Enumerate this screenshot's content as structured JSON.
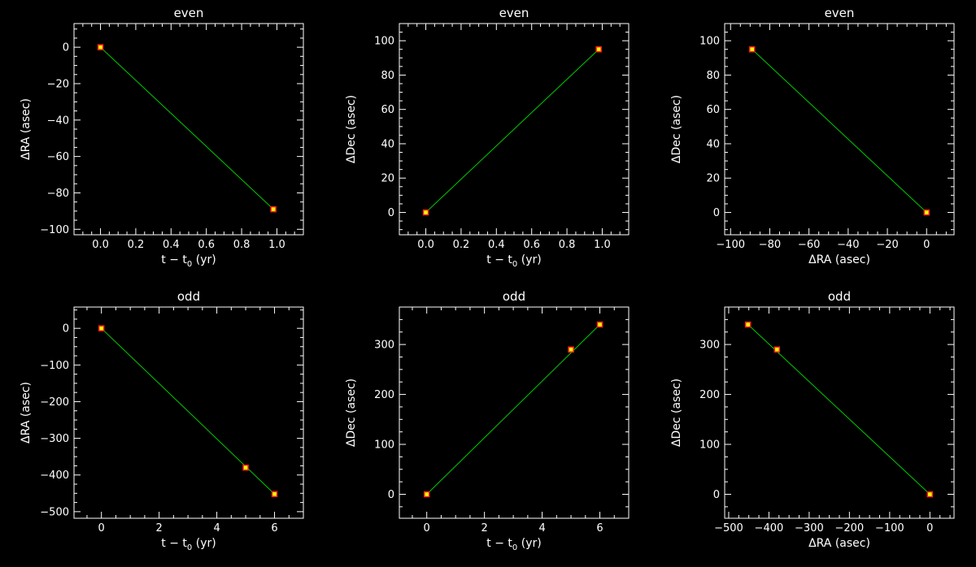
{
  "colors": {
    "background": "#000000",
    "axes": "#ffffff",
    "fit_line": "#00cc00",
    "marker_fill": "#ffff00",
    "marker_edge": "#ff2020"
  },
  "chart_data": [
    {
      "type": "scatter",
      "title": "even",
      "xlabel": {
        "main": "t − t",
        "sub": "0",
        "tail": " (yr)"
      },
      "ylabel": {
        "main": "ΔRA (asec)"
      },
      "xlim": [
        -0.15,
        1.15
      ],
      "ylim": [
        -103,
        13
      ],
      "xticks": [
        0.0,
        0.2,
        0.4,
        0.6,
        0.8,
        1.0
      ],
      "xtick_labels": [
        "0.0",
        "0.2",
        "0.4",
        "0.6",
        "0.8",
        "1.0"
      ],
      "yticks": [
        -100,
        -80,
        -60,
        -40,
        -20,
        0
      ],
      "ytick_labels": [
        "−100",
        "−80",
        "−60",
        "−40",
        "−20",
        "0"
      ],
      "xminor": 4,
      "yminor": 4,
      "points": {
        "x": [
          0.0,
          0.98
        ],
        "y": [
          0,
          -89
        ]
      },
      "fit_line": {
        "x": [
          0.0,
          0.98
        ],
        "y": [
          0,
          -89
        ]
      }
    },
    {
      "type": "scatter",
      "title": "even",
      "xlabel": {
        "main": "t − t",
        "sub": "0",
        "tail": " (yr)"
      },
      "ylabel": {
        "main": "ΔDec (asec)"
      },
      "xlim": [
        -0.15,
        1.15
      ],
      "ylim": [
        -13,
        110
      ],
      "xticks": [
        0.0,
        0.2,
        0.4,
        0.6,
        0.8,
        1.0
      ],
      "xtick_labels": [
        "0.0",
        "0.2",
        "0.4",
        "0.6",
        "0.8",
        "1.0"
      ],
      "yticks": [
        0,
        20,
        40,
        60,
        80,
        100
      ],
      "ytick_labels": [
        "0",
        "20",
        "40",
        "60",
        "80",
        "100"
      ],
      "xminor": 4,
      "yminor": 4,
      "points": {
        "x": [
          0.0,
          0.98
        ],
        "y": [
          0,
          95
        ]
      },
      "fit_line": {
        "x": [
          0.0,
          0.98
        ],
        "y": [
          0,
          95
        ]
      }
    },
    {
      "type": "scatter",
      "title": "even",
      "xlabel": {
        "main": "ΔRA (asec)"
      },
      "ylabel": {
        "main": "ΔDec (asec)"
      },
      "xlim": [
        -103,
        14
      ],
      "ylim": [
        -13,
        110
      ],
      "xticks": [
        -100,
        -80,
        -60,
        -40,
        -20,
        0
      ],
      "xtick_labels": [
        "−100",
        "−80",
        "−60",
        "−40",
        "−20",
        "0"
      ],
      "yticks": [
        0,
        20,
        40,
        60,
        80,
        100
      ],
      "ytick_labels": [
        "0",
        "20",
        "40",
        "60",
        "80",
        "100"
      ],
      "xminor": 4,
      "yminor": 4,
      "points": {
        "x": [
          -89,
          0
        ],
        "y": [
          95,
          0
        ]
      },
      "fit_line": {
        "x": [
          -89,
          0
        ],
        "y": [
          95,
          0
        ]
      }
    },
    {
      "type": "scatter",
      "title": "odd",
      "xlabel": {
        "main": "t − t",
        "sub": "0",
        "tail": " (yr)"
      },
      "ylabel": {
        "main": "ΔRA (asec)"
      },
      "xlim": [
        -0.95,
        7.0
      ],
      "ylim": [
        -518,
        58
      ],
      "xticks": [
        0,
        2,
        4,
        6
      ],
      "xtick_labels": [
        "0",
        "2",
        "4",
        "6"
      ],
      "yticks": [
        -500,
        -400,
        -300,
        -200,
        -100,
        0
      ],
      "ytick_labels": [
        "−500",
        "−400",
        "−300",
        "−200",
        "−100",
        "0"
      ],
      "xminor": 4,
      "yminor": 4,
      "points": {
        "x": [
          0,
          5,
          6
        ],
        "y": [
          0,
          -380,
          -452
        ]
      },
      "fit_line": {
        "x": [
          0,
          6
        ],
        "y": [
          0,
          -452
        ]
      }
    },
    {
      "type": "scatter",
      "title": "odd",
      "xlabel": {
        "main": "t − t",
        "sub": "0",
        "tail": " (yr)"
      },
      "ylabel": {
        "main": "ΔDec (asec)"
      },
      "xlim": [
        -0.95,
        7.0
      ],
      "ylim": [
        -48,
        375
      ],
      "xticks": [
        0,
        2,
        4,
        6
      ],
      "xtick_labels": [
        "0",
        "2",
        "4",
        "6"
      ],
      "yticks": [
        0,
        100,
        200,
        300
      ],
      "ytick_labels": [
        "0",
        "100",
        "200",
        "300"
      ],
      "xminor": 4,
      "yminor": 4,
      "points": {
        "x": [
          0,
          5,
          6
        ],
        "y": [
          0,
          290,
          340
        ]
      },
      "fit_line": {
        "x": [
          0,
          6
        ],
        "y": [
          0,
          340
        ]
      }
    },
    {
      "type": "scatter",
      "title": "odd",
      "xlabel": {
        "main": "ΔRA (asec)"
      },
      "ylabel": {
        "main": "ΔDec (asec)"
      },
      "xlim": [
        -510,
        60
      ],
      "ylim": [
        -48,
        375
      ],
      "xticks": [
        -500,
        -400,
        -300,
        -200,
        -100,
        0
      ],
      "xtick_labels": [
        "−500",
        "−400",
        "−300",
        "−200",
        "−100",
        "0"
      ],
      "yticks": [
        0,
        100,
        200,
        300
      ],
      "ytick_labels": [
        "0",
        "100",
        "200",
        "300"
      ],
      "xminor": 4,
      "yminor": 4,
      "points": {
        "x": [
          -452,
          -380,
          0
        ],
        "y": [
          340,
          290,
          0
        ]
      },
      "fit_line": {
        "x": [
          -452,
          0
        ],
        "y": [
          340,
          0
        ]
      }
    }
  ]
}
